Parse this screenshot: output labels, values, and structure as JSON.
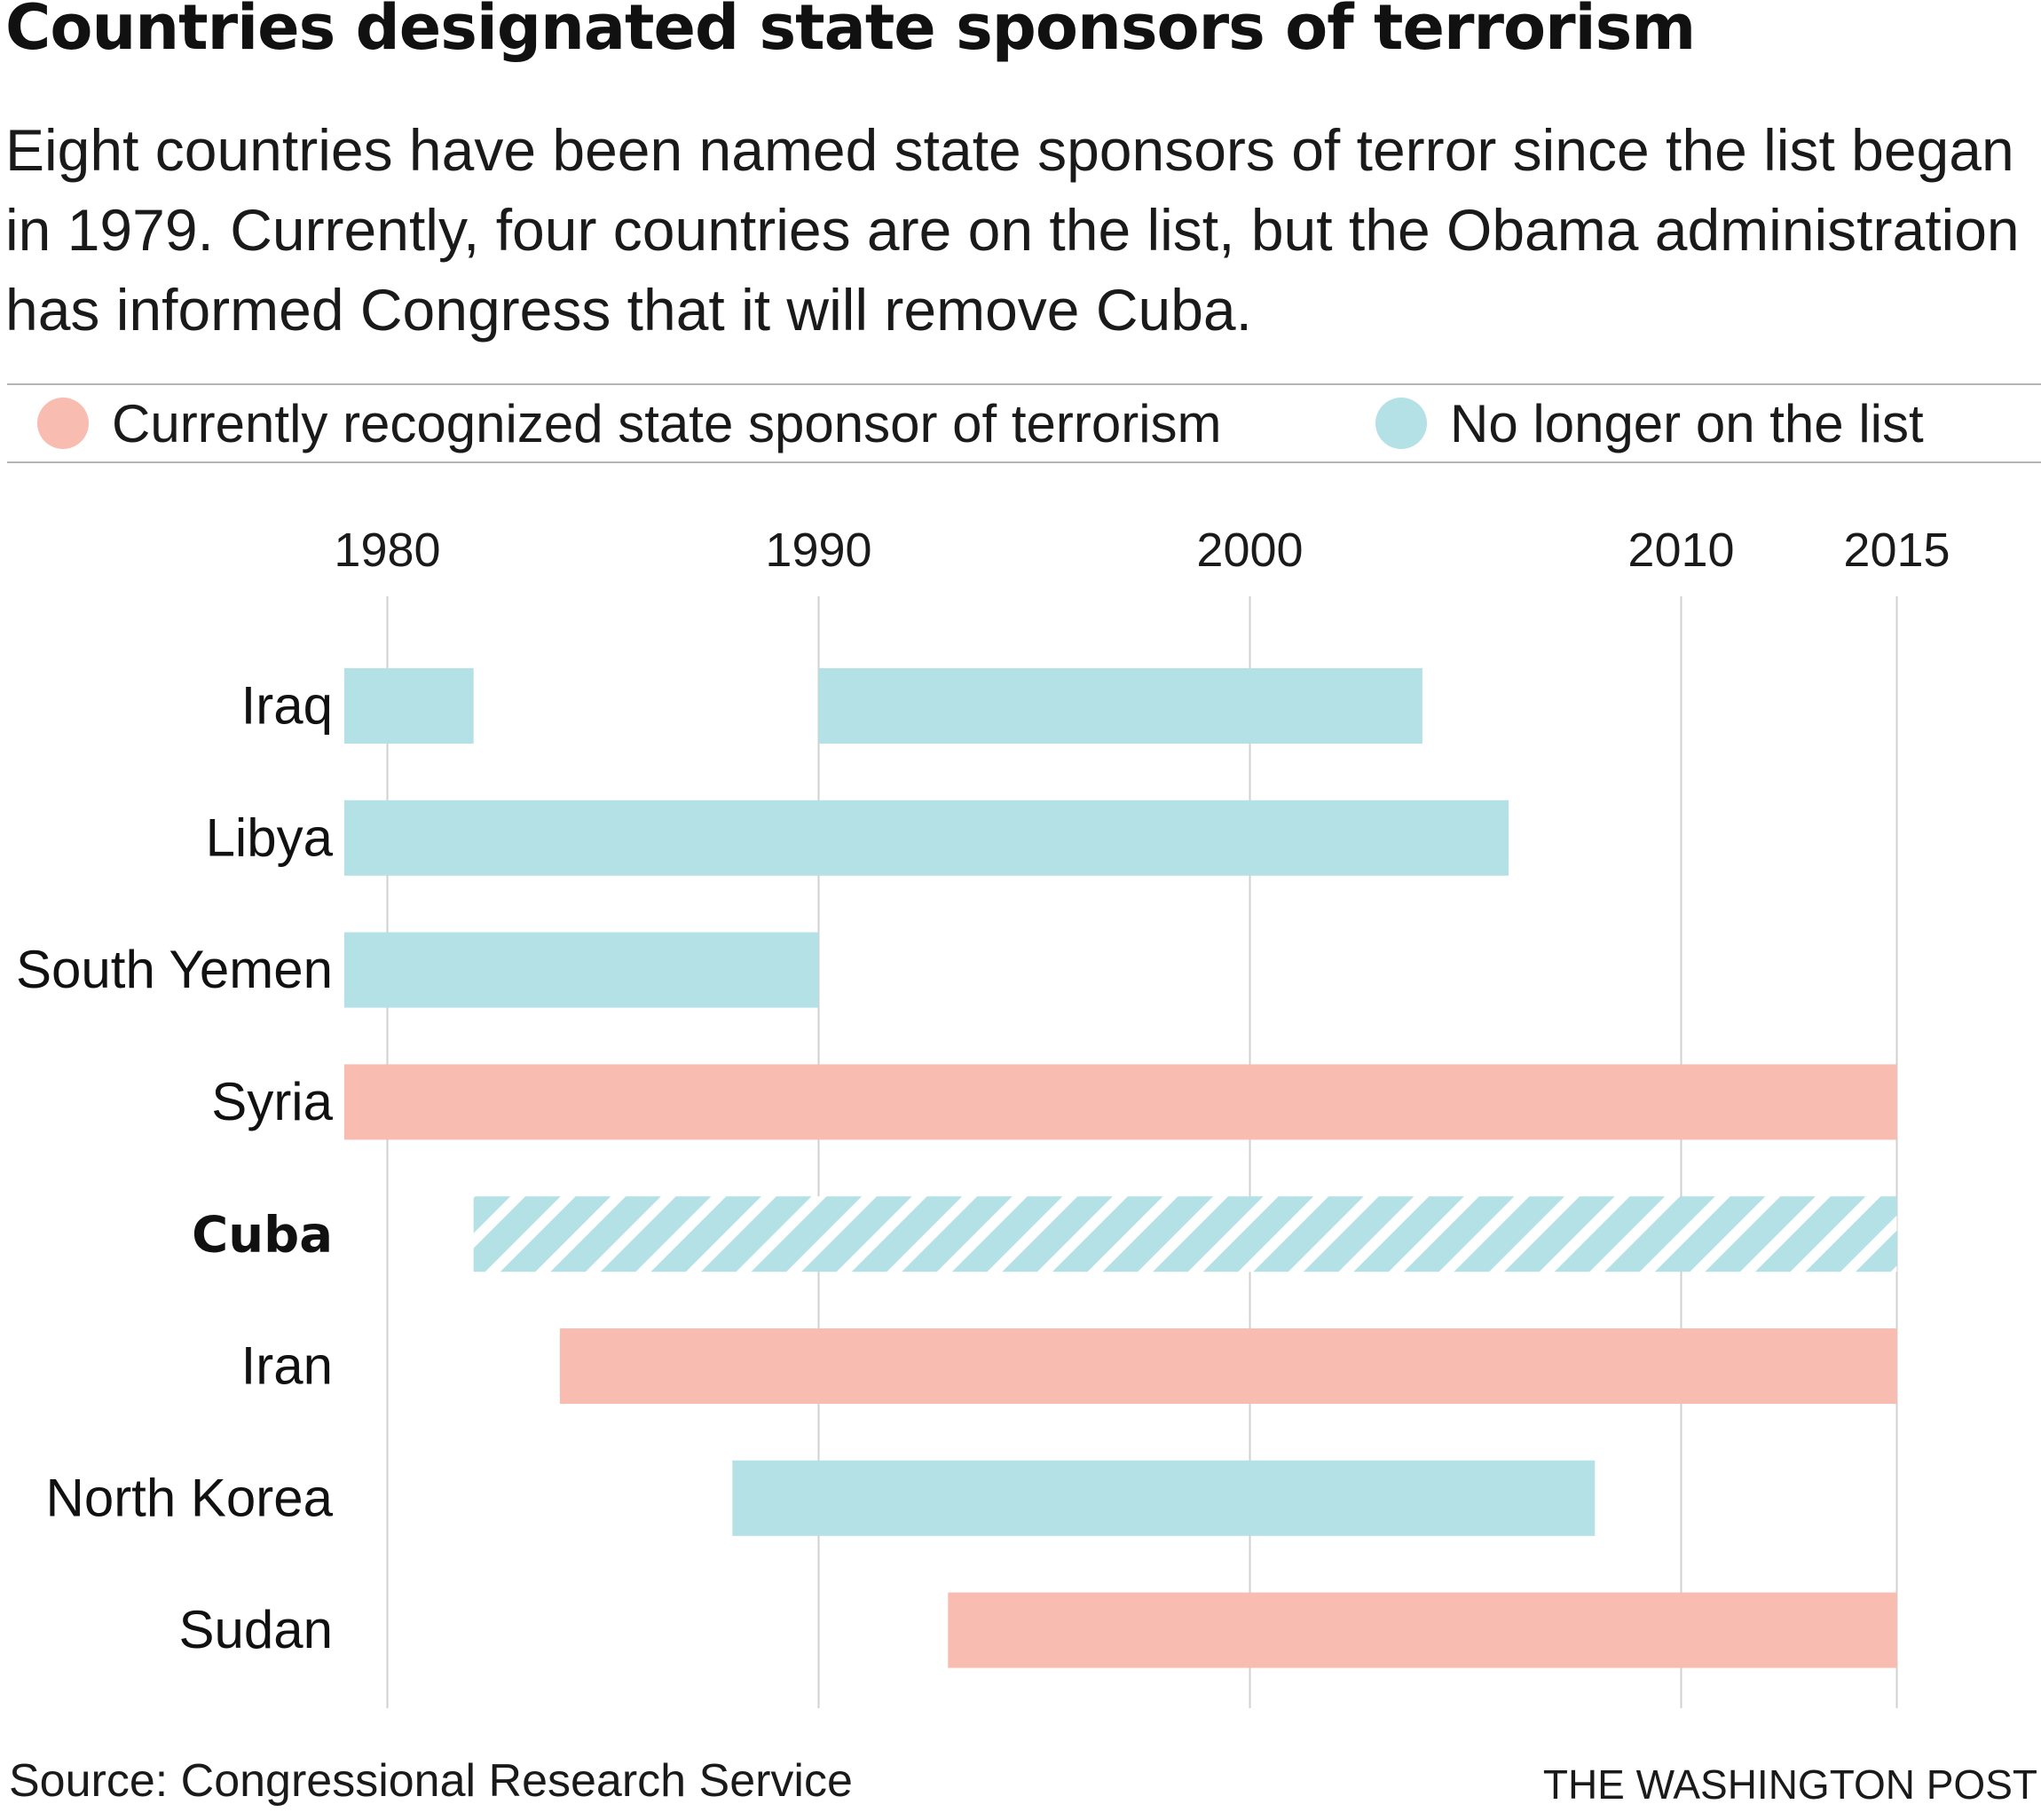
{
  "header": {
    "title": "Countries designated state sponsors of terrorism",
    "subtitle": "Eight countries have been named state sponsors of terror since the list began in 1979. Currently, four countries are on the list, but the Obama administration has informed Congress that it will remove Cuba."
  },
  "legend": [
    {
      "label": "Currently recognized state sponsor of terrorism",
      "color": "#f9bcb1"
    },
    {
      "label": "No longer on the list",
      "color": "#b4e1e5"
    }
  ],
  "footer": {
    "source": "Source: Congressional Research Service",
    "credit": "THE WASHINGTON POST"
  },
  "chart_data": {
    "type": "bar",
    "orientation": "horizontal-range",
    "title": "Countries designated state sponsors of terrorism",
    "xlabel": "",
    "ylabel": "",
    "xlim": [
      1979,
      2015
    ],
    "x_ticks": [
      1980,
      1990,
      2000,
      2010,
      2015
    ],
    "grid": true,
    "legend_position": "top",
    "colors": {
      "current": "#f9bcb1",
      "removed": "#b4e1e5",
      "stripe": "#ffffff"
    },
    "series": [
      {
        "name": "Currently recognized state sponsor of terrorism",
        "status": "current"
      },
      {
        "name": "No longer on the list",
        "status": "removed"
      }
    ],
    "categories": [
      "Iraq",
      "Libya",
      "South Yemen",
      "Syria",
      "Cuba",
      "Iran",
      "North Korea",
      "Sudan"
    ],
    "rows": [
      {
        "country": "Iraq",
        "bold": false,
        "segments": [
          {
            "start": 1979,
            "end": 1982,
            "status": "removed"
          },
          {
            "start": 1990,
            "end": 2004,
            "status": "removed"
          }
        ]
      },
      {
        "country": "Libya",
        "bold": false,
        "segments": [
          {
            "start": 1979,
            "end": 2006,
            "status": "removed"
          }
        ]
      },
      {
        "country": "South Yemen",
        "bold": false,
        "segments": [
          {
            "start": 1979,
            "end": 1990,
            "status": "removed"
          }
        ]
      },
      {
        "country": "Syria",
        "bold": false,
        "segments": [
          {
            "start": 1979,
            "end": 2015,
            "status": "current"
          }
        ]
      },
      {
        "country": "Cuba",
        "bold": true,
        "segments": [
          {
            "start": 1982,
            "end": 2015,
            "status": "removed",
            "hatched": true
          }
        ]
      },
      {
        "country": "Iran",
        "bold": false,
        "segments": [
          {
            "start": 1984,
            "end": 2015,
            "status": "current"
          }
        ]
      },
      {
        "country": "North Korea",
        "bold": false,
        "segments": [
          {
            "start": 1988,
            "end": 2008,
            "status": "removed"
          }
        ]
      },
      {
        "country": "Sudan",
        "bold": false,
        "segments": [
          {
            "start": 1993,
            "end": 2015,
            "status": "current"
          }
        ]
      }
    ]
  }
}
